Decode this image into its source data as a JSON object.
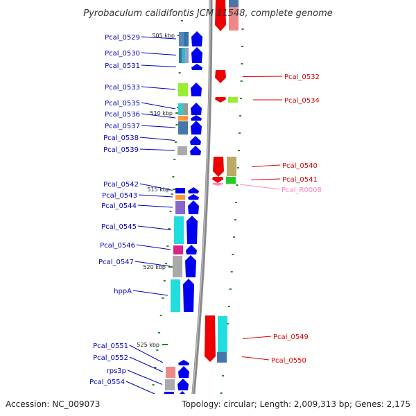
{
  "title": "Pyrobaculum calidifontis JCM 11548, complete genome",
  "footer": {
    "accession": "Accession: NC_009073",
    "summary": "Topology: circular; Length: 2,009,313 bp; Genes: 2,175"
  },
  "colors": {
    "forward_label": "#0000bb",
    "reverse_label": "#dd0000",
    "rna_label": "#ff88bb",
    "forward_arrow": "#0000ee",
    "reverse_arrow": "#ee0000",
    "tick": "#228822",
    "backbone": "#888888"
  },
  "scale_ticks": [
    {
      "label": "505 kbp"
    },
    {
      "label": "510 kbp"
    },
    {
      "label": "515 kbp"
    },
    {
      "label": "520 kbp"
    },
    {
      "label": "525 kbp"
    }
  ],
  "forward_genes": [
    {
      "label": "Pcal_0529",
      "cog": [
        "#5588bb",
        "#3377aa"
      ]
    },
    {
      "label": "Pcal_0530",
      "cog": [
        "#3377aa",
        "#33bbbb",
        "#9999cc"
      ]
    },
    {
      "label": "Pcal_0531",
      "cog": []
    },
    {
      "label": "Pcal_0533",
      "cog": [
        "#99ee33"
      ]
    },
    {
      "label": "Pcal_0535",
      "cog": [
        "#33cccc",
        "#999999"
      ]
    },
    {
      "label": "Pcal_0536",
      "cog": [
        "#ff9933"
      ]
    },
    {
      "label": "Pcal_0537",
      "cog": [
        "#4477aa"
      ]
    },
    {
      "label": "Pcal_0538",
      "cog": []
    },
    {
      "label": "Pcal_0539",
      "cog": [
        "#aaaaaa"
      ]
    },
    {
      "label": "Pcal_0542",
      "cog": [
        "#0000ee"
      ]
    },
    {
      "label": "Pcal_0543",
      "cog": [
        "#ff9933"
      ]
    },
    {
      "label": "Pcal_0544",
      "cog": [
        "#8866cc"
      ]
    },
    {
      "label": "Pcal_0545",
      "cog": [
        "#22dddd"
      ]
    },
    {
      "label": "Pcal_0546",
      "cog": [
        "#dd2288"
      ]
    },
    {
      "label": "Pcal_0547",
      "cog": [
        "#aaaaaa"
      ]
    },
    {
      "label": "hppA",
      "cog": [
        "#22dddd"
      ]
    },
    {
      "label": "Pcal_0551",
      "cog": []
    },
    {
      "label": "Pcal_0552",
      "cog": [
        "#ee8888"
      ]
    },
    {
      "label": "rps3p",
      "cog": [
        "#aaaaaa"
      ]
    },
    {
      "label": "Pcal_0554",
      "cog": [
        "#0000ee"
      ]
    }
  ],
  "reverse_genes": [
    {
      "label": "Pcal_0532",
      "cog": []
    },
    {
      "label": "Pcal_0534",
      "cog": [
        "#99ee33"
      ]
    },
    {
      "label": "Pcal_0540",
      "cog": [
        "#bbaa66"
      ]
    },
    {
      "label": "Pcal_0541",
      "cog": [
        "#22cc22"
      ]
    },
    {
      "label": "Pcal_R0008",
      "cog": [],
      "rna": true
    },
    {
      "label": "Pcal_0549",
      "cog": [
        "#22dddd"
      ]
    },
    {
      "label": "Pcal_0550",
      "cog": [
        "#4477aa"
      ]
    }
  ]
}
